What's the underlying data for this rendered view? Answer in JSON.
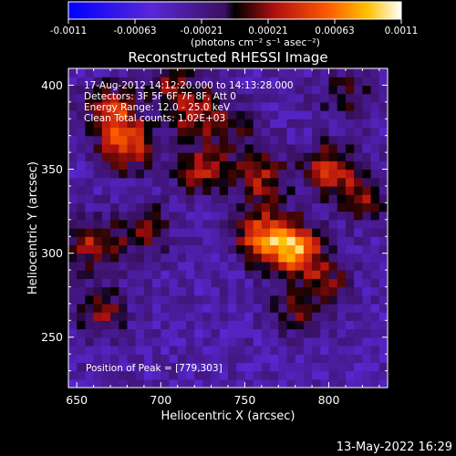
{
  "chart_data": {
    "type": "heatmap",
    "title": "Reconstructed RHESSI Image",
    "xlabel": "Heliocentric X (arcsec)",
    "ylabel": "Heliocentric Y (arcsec)",
    "xlim": [
      645,
      835
    ],
    "ylim": [
      220,
      410
    ],
    "x_ticks": [
      650,
      700,
      750,
      800
    ],
    "y_ticks": [
      250,
      300,
      350,
      400
    ],
    "colorbar": {
      "ticks": [
        "-0.0011",
        "-0.00063",
        "-0.00021",
        "0.00021",
        "0.00063",
        "0.0011"
      ],
      "unit_label": "(photons cm⁻² s⁻¹ asec⁻²)",
      "range": [
        -0.0011,
        0.0011
      ]
    },
    "annotations": [
      "17-Aug-2012 14:12:20.000 to 14:13:28.000",
      "Detectors: 3F 5F 6F 7F 8F, Att 0",
      "Energy Range: 12.0 - 25.0 keV",
      "Clean     Total counts: 1.02E+03"
    ],
    "peak_label": "Position of Peak = [779,303]",
    "peak": [
      779,
      303
    ],
    "sources": [
      {
        "x": 779,
        "y": 303,
        "value": 0.0011
      },
      {
        "x": 760,
        "y": 310,
        "value": 0.0008
      },
      {
        "x": 680,
        "y": 365,
        "value": 0.0008
      },
      {
        "x": 670,
        "y": 385,
        "value": 0.0007
      },
      {
        "x": 720,
        "y": 385,
        "value": 0.0006
      },
      {
        "x": 725,
        "y": 350,
        "value": 0.0006
      },
      {
        "x": 760,
        "y": 345,
        "value": 0.0006
      },
      {
        "x": 800,
        "y": 350,
        "value": 0.00065
      },
      {
        "x": 820,
        "y": 335,
        "value": 0.0005
      },
      {
        "x": 660,
        "y": 305,
        "value": 0.0006
      },
      {
        "x": 690,
        "y": 315,
        "value": 0.0005
      },
      {
        "x": 665,
        "y": 265,
        "value": 0.0005
      },
      {
        "x": 780,
        "y": 265,
        "value": 0.0004
      },
      {
        "x": 800,
        "y": 285,
        "value": 0.0004
      },
      {
        "x": 705,
        "y": 405,
        "value": 0.00045
      },
      {
        "x": 810,
        "y": 395,
        "value": 0.0004
      },
      {
        "x": 745,
        "y": 375,
        "value": 0.00035
      }
    ]
  },
  "footer": {
    "date": "13-May-2022 16:29"
  },
  "colors": {
    "background": "#000000",
    "foreground": "#ffffff"
  }
}
